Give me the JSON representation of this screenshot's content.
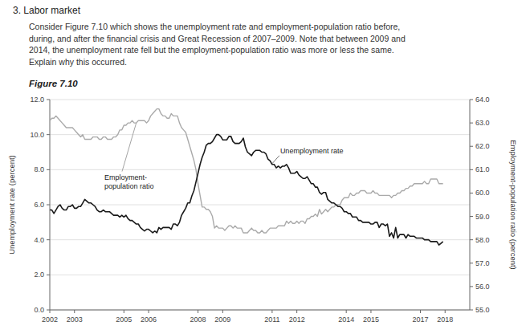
{
  "chart_data": {
    "type": "line",
    "title": "3. Labor market",
    "subtitle": "Consider Figure 7.10 which shows the unemployment rate and employment-population ratio before,\nduring, and after the financial crisis and Great Recession of 2007–2009. Note that between 2009 and\n2014, the unemployment rate fell but the employment-population ratio was more or less the same.\nExplain why this occurred.",
    "caption": "Figure 7.10",
    "y_label": "Unemployment rate (percent)",
    "y2_label": "Employment-population ratio (percent)",
    "annotations": [
      "Employment-\npopulation ratio",
      "Unemployment rate"
    ],
    "grid": true,
    "xlim": [
      2002,
      2019
    ],
    "xticks": [
      2002,
      2003,
      2005,
      2006,
      2008,
      2009,
      2011,
      2012,
      2014,
      2015,
      2017,
      2018
    ],
    "ylim": [
      0.0,
      12.0
    ],
    "yticks": [
      {
        "value": 0,
        "label": "0.0"
      },
      {
        "value": 2,
        "label": "2.0"
      },
      {
        "value": 4,
        "label": "4.0"
      },
      {
        "value": 6,
        "label": "6.0"
      },
      {
        "value": 8,
        "label": "8.0"
      },
      {
        "value": 10,
        "label": "10.0"
      },
      {
        "value": 12,
        "label": "12.0"
      }
    ],
    "y2lim": [
      55.0,
      64.0
    ],
    "y2ticks": [
      {
        "value": 55,
        "label": "55.0"
      },
      {
        "value": 56,
        "label": "56.0"
      },
      {
        "value": 57,
        "label": "57.0"
      },
      {
        "value": 58,
        "label": "58.0"
      },
      {
        "value": 59,
        "label": "59.0"
      },
      {
        "value": 60,
        "label": "60.0"
      },
      {
        "value": 61,
        "label": "61.0"
      },
      {
        "value": 62,
        "label": "62.0"
      },
      {
        "value": 63,
        "label": "63.0"
      },
      {
        "value": 64,
        "label": "64.0"
      }
    ],
    "x": [
      2002,
      2002.0833,
      2002.1667,
      2002.25,
      2002.3333,
      2002.4167,
      2002.5,
      2002.5833,
      2002.6667,
      2002.75,
      2002.8333,
      2002.9167,
      2003,
      2003.0833,
      2003.1667,
      2003.25,
      2003.3333,
      2003.4167,
      2003.5,
      2003.5833,
      2003.6667,
      2003.75,
      2003.8333,
      2003.9167,
      2004,
      2004.0833,
      2004.1667,
      2004.25,
      2004.3333,
      2004.4167,
      2004.5,
      2004.5833,
      2004.6667,
      2004.75,
      2004.8333,
      2004.9167,
      2005,
      2005.0833,
      2005.1667,
      2005.25,
      2005.3333,
      2005.4167,
      2005.5,
      2005.5833,
      2005.6667,
      2005.75,
      2005.8333,
      2005.9167,
      2006,
      2006.0833,
      2006.1667,
      2006.25,
      2006.3333,
      2006.4167,
      2006.5,
      2006.5833,
      2006.6667,
      2006.75,
      2006.8333,
      2006.9167,
      2007,
      2007.0833,
      2007.1667,
      2007.25,
      2007.3333,
      2007.4167,
      2007.5,
      2007.5833,
      2007.6667,
      2007.75,
      2007.8333,
      2007.9167,
      2008,
      2008.0833,
      2008.1667,
      2008.25,
      2008.3333,
      2008.4167,
      2008.5,
      2008.5833,
      2008.6667,
      2008.75,
      2008.8333,
      2008.9167,
      2009,
      2009.0833,
      2009.1667,
      2009.25,
      2009.3333,
      2009.4167,
      2009.5,
      2009.5833,
      2009.6667,
      2009.75,
      2009.8333,
      2009.9167,
      2010,
      2010.0833,
      2010.1667,
      2010.25,
      2010.3333,
      2010.4167,
      2010.5,
      2010.5833,
      2010.6667,
      2010.75,
      2010.8333,
      2010.9167,
      2011,
      2011.0833,
      2011.1667,
      2011.25,
      2011.3333,
      2011.4167,
      2011.5,
      2011.5833,
      2011.6667,
      2011.75,
      2011.8333,
      2011.9167,
      2012,
      2012.0833,
      2012.1667,
      2012.25,
      2012.3333,
      2012.4167,
      2012.5,
      2012.5833,
      2012.6667,
      2012.75,
      2012.8333,
      2012.9167,
      2013,
      2013.0833,
      2013.1667,
      2013.25,
      2013.3333,
      2013.4167,
      2013.5,
      2013.5833,
      2013.6667,
      2013.75,
      2013.8333,
      2013.9167,
      2014,
      2014.0833,
      2014.1667,
      2014.25,
      2014.3333,
      2014.4167,
      2014.5,
      2014.5833,
      2014.6667,
      2014.75,
      2014.8333,
      2014.9167,
      2015,
      2015.0833,
      2015.1667,
      2015.25,
      2015.3333,
      2015.4167,
      2015.5,
      2015.5833,
      2015.6667,
      2015.75,
      2015.8333,
      2015.9167,
      2016,
      2016.0833,
      2016.1667,
      2016.25,
      2016.3333,
      2016.4167,
      2016.5,
      2016.5833,
      2016.6667,
      2016.75,
      2016.8333,
      2016.9167,
      2017,
      2017.0833,
      2017.1667,
      2017.25,
      2017.3333,
      2017.4167,
      2017.5,
      2017.5833,
      2017.6667,
      2017.75,
      2017.8333,
      2017.9167
    ],
    "series": [
      {
        "color": "#1a1a1a",
        "values": [
          5.7,
          5.7,
          5.5,
          5.7,
          5.9,
          6.0,
          5.8,
          5.7,
          5.7,
          5.9,
          5.9,
          6.0,
          5.8,
          5.8,
          5.9,
          5.9,
          6.1,
          6.3,
          6.2,
          6.1,
          6.1,
          6.0,
          5.9,
          5.7,
          5.6,
          5.6,
          5.7,
          5.6,
          5.6,
          5.6,
          5.5,
          5.4,
          5.4,
          5.4,
          5.3,
          5.4,
          5.3,
          5.4,
          5.2,
          5.1,
          5.1,
          5.0,
          4.9,
          4.9,
          4.7,
          4.6,
          4.5,
          4.6,
          4.6,
          4.5,
          4.4,
          4.5,
          4.4,
          4.7,
          4.6,
          4.7,
          4.7,
          4.7,
          4.7,
          4.6,
          4.9,
          4.9,
          4.8,
          5.0,
          5.4,
          5.6,
          5.8,
          6.1,
          6.1,
          6.5,
          6.8,
          7.3,
          7.8,
          8.3,
          8.7,
          9.0,
          9.4,
          9.5,
          9.5,
          9.6,
          9.8,
          10.0,
          10.0,
          9.9,
          9.7,
          9.7,
          9.7,
          9.9,
          9.9,
          9.6,
          9.5,
          9.5,
          9.5,
          9.6,
          9.8,
          9.3,
          9.0,
          8.9,
          8.8,
          9.0,
          9.1,
          9.1,
          9.1,
          9.0,
          9.0,
          8.9,
          8.6,
          8.5,
          8.3,
          8.3,
          8.1,
          8.2,
          8.1,
          8.2,
          8.2,
          8.3,
          8.1,
          7.8,
          7.8,
          7.8,
          7.9,
          7.7,
          7.6,
          7.5,
          7.5,
          7.6,
          7.4,
          7.2,
          7.2,
          7.0,
          7.0,
          6.7,
          6.6,
          6.7,
          6.7,
          6.3,
          6.2,
          6.1,
          6.1,
          6.0,
          5.9,
          5.9,
          5.8,
          5.6,
          5.6,
          5.5,
          5.5,
          5.3,
          5.3,
          5.3,
          5.1,
          5.1,
          5.0,
          5.0,
          5.0,
          5.0,
          4.9,
          4.9,
          5.0,
          5.0,
          4.7,
          4.9,
          4.9,
          4.8,
          4.9,
          4.2,
          4.4,
          4.1,
          4.7,
          4.1,
          4.3,
          4.3,
          4.3,
          4.1,
          4.3,
          4.2,
          4.2,
          4.2,
          4.1,
          4.1,
          4.1,
          4.1,
          4.0,
          4.0,
          4.0,
          3.9,
          3.9,
          3.9,
          3.9,
          3.7,
          3.8,
          3.9
        ]
      },
      {
        "color": "#aaaaaa",
        "axis": "y2",
        "values": [
          63.1,
          63.2,
          63.2,
          63.3,
          63.2,
          63.1,
          63.0,
          62.9,
          62.8,
          62.8,
          62.8,
          62.8,
          62.7,
          62.6,
          62.5,
          62.4,
          62.5,
          62.3,
          62.3,
          62.3,
          62.3,
          62.4,
          62.4,
          62.4,
          62.3,
          62.3,
          62.4,
          62.4,
          62.3,
          62.3,
          62.3,
          62.4,
          62.4,
          62.5,
          62.7,
          62.7,
          62.9,
          62.9,
          63.0,
          63.0,
          63.1,
          63.0,
          63.0,
          63.1,
          63.1,
          63.1,
          63.1,
          63.0,
          63.1,
          63.3,
          63.4,
          63.5,
          63.6,
          63.6,
          63.4,
          63.3,
          63.3,
          63.2,
          63.2,
          63.4,
          63.3,
          63.3,
          63.3,
          63.0,
          62.8,
          62.7,
          62.6,
          62.3,
          62.0,
          61.7,
          61.4,
          61.0,
          60.4,
          59.9,
          59.4,
          59.4,
          59.3,
          59.3,
          59.2,
          59.0,
          58.5,
          58.6,
          58.5,
          58.5,
          58.5,
          58.4,
          58.5,
          58.6,
          58.6,
          58.5,
          58.6,
          58.5,
          58.5,
          58.5,
          58.3,
          58.3,
          58.3,
          58.4,
          58.5,
          58.4,
          58.4,
          58.3,
          58.3,
          58.4,
          58.3,
          58.3,
          58.4,
          58.5,
          58.5,
          58.5,
          58.5,
          58.6,
          58.6,
          58.6,
          58.6,
          58.8,
          58.7,
          58.8,
          58.7,
          58.7,
          58.8,
          58.7,
          58.8,
          58.8,
          58.7,
          58.9,
          58.9,
          59.0,
          59.0,
          59.1,
          59.0,
          59.3,
          59.1,
          59.2,
          59.3,
          59.2,
          59.3,
          59.4,
          59.4,
          59.5,
          59.5,
          59.5,
          59.7,
          59.8,
          59.8,
          59.8,
          60.0,
          59.9,
          59.9,
          60.0,
          60.0,
          60.1,
          60.1,
          60.1,
          60.0,
          60.0,
          60.0,
          60.1,
          60.0,
          60.0,
          59.9,
          59.9,
          59.9,
          59.9,
          59.9,
          59.9,
          59.8,
          59.9,
          59.9,
          60.0,
          60.0,
          60.1,
          60.1,
          60.2,
          60.2,
          60.3,
          60.3,
          60.4,
          60.4,
          60.4,
          60.4,
          60.4,
          60.5,
          60.4,
          60.4,
          60.6,
          60.6,
          60.6,
          60.6,
          60.4,
          60.4,
          60.4
        ]
      }
    ]
  }
}
